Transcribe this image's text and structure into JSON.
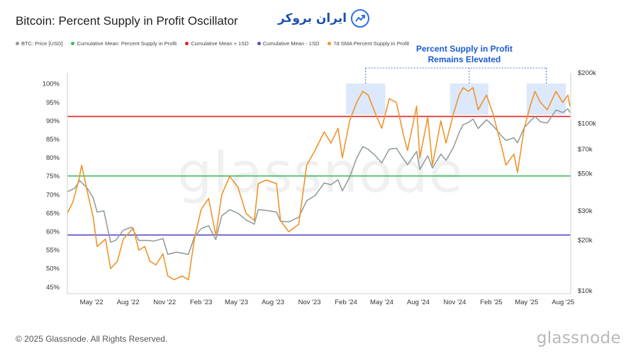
{
  "header": {
    "title": "Bitcoin: Percent Supply in Profit Oscillator",
    "brand_logo_text": "ایران بروکر"
  },
  "footer": {
    "copyright": "© 2025 Glassnode. All Rights Reserved.",
    "brand": "glassnode"
  },
  "watermark": "glassnode",
  "colors": {
    "price": "#8c9a97",
    "mean": "#41b85b",
    "mean_plus": "#e02020",
    "mean_minus": "#5b4fc4",
    "sma": "#f0932b",
    "highlight": "#dce8fb",
    "annotation": "#1a5ad6"
  },
  "chart_data": {
    "type": "line",
    "title": "Bitcoin: Percent Supply in Profit Oscillator",
    "legend_placement": "top-left",
    "grid": false,
    "x_ticks": [
      "May '22",
      "Aug '22",
      "Nov '22",
      "Feb '23",
      "May '23",
      "Aug '23",
      "Nov '23",
      "Feb '24",
      "May '24",
      "Aug '24",
      "Nov '24",
      "Feb '25",
      "May '25",
      "Aug '25"
    ],
    "x_range": [
      "2022-03",
      "2025-08"
    ],
    "y_left": {
      "ticks": [
        "100%",
        "95%",
        "90%",
        "85%",
        "80%",
        "75%",
        "70%",
        "65%",
        "60%",
        "55%",
        "50%",
        "45%"
      ],
      "range": [
        44,
        103
      ]
    },
    "y_right": {
      "scale": "log",
      "ticks": [
        "$200k",
        "$100k",
        "$70k",
        "$50k",
        "$30k",
        "$20k",
        "$10k"
      ],
      "tick_values": [
        200000,
        100000,
        70000,
        50000,
        30000,
        20000,
        10000
      ],
      "range": [
        10000,
        200000
      ]
    },
    "horizontal_lines": [
      {
        "name": "Cumulative Mean: Percent Supply in Profit",
        "value": 75.1
      },
      {
        "name": "Cumulative Mean + 1SD",
        "value": 91.2
      },
      {
        "name": "Cumulative Mean - 1SD",
        "value": 59.1
      }
    ],
    "annotation": {
      "text_line1": "Percent Supply in Profit",
      "text_line2": "Remains Elevated"
    },
    "highlight_periods": [
      {
        "start": "2024-02-01",
        "end": "2024-05-10"
      },
      {
        "start": "2024-10-20",
        "end": "2025-01-25"
      },
      {
        "start": "2025-05-01",
        "end": "2025-08-08"
      }
    ],
    "series": [
      {
        "name": "BTC: Price [USD]",
        "axis": "right",
        "points": [
          [
            "2022-03-01",
            39000
          ],
          [
            "2022-03-20",
            41000
          ],
          [
            "2022-04-01",
            45500
          ],
          [
            "2022-04-20",
            41000
          ],
          [
            "2022-05-05",
            36000
          ],
          [
            "2022-05-15",
            29500
          ],
          [
            "2022-06-01",
            30000
          ],
          [
            "2022-06-18",
            19500
          ],
          [
            "2022-07-01",
            20000
          ],
          [
            "2022-07-20",
            23000
          ],
          [
            "2022-08-10",
            24000
          ],
          [
            "2022-08-28",
            20000
          ],
          [
            "2022-09-15",
            20000
          ],
          [
            "2022-10-05",
            19800
          ],
          [
            "2022-10-28",
            20500
          ],
          [
            "2022-11-09",
            16500
          ],
          [
            "2022-12-01",
            17000
          ],
          [
            "2022-12-31",
            16500
          ],
          [
            "2023-01-15",
            21000
          ],
          [
            "2023-02-01",
            23500
          ],
          [
            "2023-02-20",
            24500
          ],
          [
            "2023-03-10",
            20200
          ],
          [
            "2023-03-25",
            28000
          ],
          [
            "2023-04-14",
            30500
          ],
          [
            "2023-05-05",
            29000
          ],
          [
            "2023-05-25",
            26500
          ],
          [
            "2023-06-15",
            25000
          ],
          [
            "2023-06-25",
            30500
          ],
          [
            "2023-07-15",
            30200
          ],
          [
            "2023-08-10",
            29500
          ],
          [
            "2023-08-20",
            26000
          ],
          [
            "2023-09-10",
            25800
          ],
          [
            "2023-10-05",
            27500
          ],
          [
            "2023-10-25",
            34500
          ],
          [
            "2023-11-15",
            37000
          ],
          [
            "2023-12-08",
            44000
          ],
          [
            "2023-12-25",
            43000
          ],
          [
            "2024-01-12",
            46000
          ],
          [
            "2024-01-23",
            39500
          ],
          [
            "2024-02-10",
            47500
          ],
          [
            "2024-02-28",
            62000
          ],
          [
            "2024-03-14",
            72500
          ],
          [
            "2024-03-28",
            70000
          ],
          [
            "2024-04-15",
            64000
          ],
          [
            "2024-05-01",
            58000
          ],
          [
            "2024-05-20",
            70000
          ],
          [
            "2024-06-07",
            71000
          ],
          [
            "2024-06-25",
            61000
          ],
          [
            "2024-07-05",
            56500
          ],
          [
            "2024-07-28",
            68000
          ],
          [
            "2024-08-05",
            53000
          ],
          [
            "2024-08-25",
            64000
          ],
          [
            "2024-09-06",
            54000
          ],
          [
            "2024-09-27",
            65500
          ],
          [
            "2024-10-10",
            60000
          ],
          [
            "2024-10-29",
            72000
          ],
          [
            "2024-11-12",
            88000
          ],
          [
            "2024-11-22",
            98000
          ],
          [
            "2024-12-05",
            101000
          ],
          [
            "2024-12-17",
            106000
          ],
          [
            "2024-12-30",
            93000
          ],
          [
            "2025-01-20",
            105000
          ],
          [
            "2025-02-05",
            97000
          ],
          [
            "2025-02-27",
            84000
          ],
          [
            "2025-03-10",
            79000
          ],
          [
            "2025-03-30",
            82000
          ],
          [
            "2025-04-08",
            76500
          ],
          [
            "2025-04-25",
            94000
          ],
          [
            "2025-05-10",
            103000
          ],
          [
            "2025-05-22",
            110000
          ],
          [
            "2025-06-05",
            102000
          ],
          [
            "2025-06-22",
            100500
          ],
          [
            "2025-07-14",
            120000
          ],
          [
            "2025-07-31",
            116000
          ],
          [
            "2025-08-13",
            122000
          ],
          [
            "2025-08-18",
            116000
          ]
        ]
      },
      {
        "name": "7d SMA Percent Supply in Profit",
        "axis": "left",
        "points": [
          [
            "2022-03-01",
            65
          ],
          [
            "2022-03-15",
            68
          ],
          [
            "2022-03-30",
            74
          ],
          [
            "2022-04-06",
            78
          ],
          [
            "2022-04-20",
            71
          ],
          [
            "2022-05-05",
            64
          ],
          [
            "2022-05-15",
            56
          ],
          [
            "2022-06-05",
            58
          ],
          [
            "2022-06-18",
            50
          ],
          [
            "2022-07-05",
            52
          ],
          [
            "2022-07-20",
            58
          ],
          [
            "2022-08-14",
            61
          ],
          [
            "2022-08-28",
            55
          ],
          [
            "2022-09-12",
            56
          ],
          [
            "2022-09-25",
            52
          ],
          [
            "2022-10-10",
            51
          ],
          [
            "2022-10-28",
            54
          ],
          [
            "2022-11-09",
            48
          ],
          [
            "2022-11-25",
            47
          ],
          [
            "2022-12-15",
            48
          ],
          [
            "2022-12-31",
            47
          ],
          [
            "2023-01-15",
            58
          ],
          [
            "2023-02-01",
            66
          ],
          [
            "2023-02-20",
            69
          ],
          [
            "2023-03-10",
            59
          ],
          [
            "2023-03-25",
            70
          ],
          [
            "2023-04-14",
            75
          ],
          [
            "2023-05-05",
            72
          ],
          [
            "2023-05-25",
            65
          ],
          [
            "2023-06-15",
            63
          ],
          [
            "2023-06-25",
            73
          ],
          [
            "2023-07-15",
            74
          ],
          [
            "2023-08-10",
            73
          ],
          [
            "2023-08-20",
            63
          ],
          [
            "2023-09-10",
            60
          ],
          [
            "2023-10-05",
            62
          ],
          [
            "2023-10-25",
            78
          ],
          [
            "2023-11-15",
            82
          ],
          [
            "2023-12-08",
            87
          ],
          [
            "2023-12-25",
            84
          ],
          [
            "2024-01-12",
            88
          ],
          [
            "2024-01-23",
            80
          ],
          [
            "2024-02-10",
            90
          ],
          [
            "2024-02-28",
            95
          ],
          [
            "2024-03-14",
            98
          ],
          [
            "2024-03-28",
            97
          ],
          [
            "2024-04-15",
            92
          ],
          [
            "2024-05-01",
            88
          ],
          [
            "2024-05-20",
            96
          ],
          [
            "2024-06-07",
            95
          ],
          [
            "2024-06-25",
            86
          ],
          [
            "2024-07-05",
            82
          ],
          [
            "2024-07-28",
            94
          ],
          [
            "2024-08-05",
            80
          ],
          [
            "2024-08-25",
            91
          ],
          [
            "2024-09-06",
            78
          ],
          [
            "2024-09-27",
            90
          ],
          [
            "2024-10-10",
            84
          ],
          [
            "2024-10-29",
            92
          ],
          [
            "2024-11-12",
            97
          ],
          [
            "2024-11-22",
            99
          ],
          [
            "2024-12-05",
            98
          ],
          [
            "2024-12-17",
            99
          ],
          [
            "2024-12-30",
            93
          ],
          [
            "2025-01-20",
            97
          ],
          [
            "2025-02-05",
            92
          ],
          [
            "2025-02-27",
            83
          ],
          [
            "2025-03-10",
            78
          ],
          [
            "2025-03-30",
            81
          ],
          [
            "2025-04-08",
            76
          ],
          [
            "2025-04-25",
            88
          ],
          [
            "2025-05-10",
            94
          ],
          [
            "2025-05-22",
            98
          ],
          [
            "2025-06-05",
            95
          ],
          [
            "2025-06-22",
            93
          ],
          [
            "2025-07-14",
            98
          ],
          [
            "2025-07-31",
            95
          ],
          [
            "2025-08-13",
            97
          ],
          [
            "2025-08-18",
            94
          ]
        ]
      }
    ]
  }
}
